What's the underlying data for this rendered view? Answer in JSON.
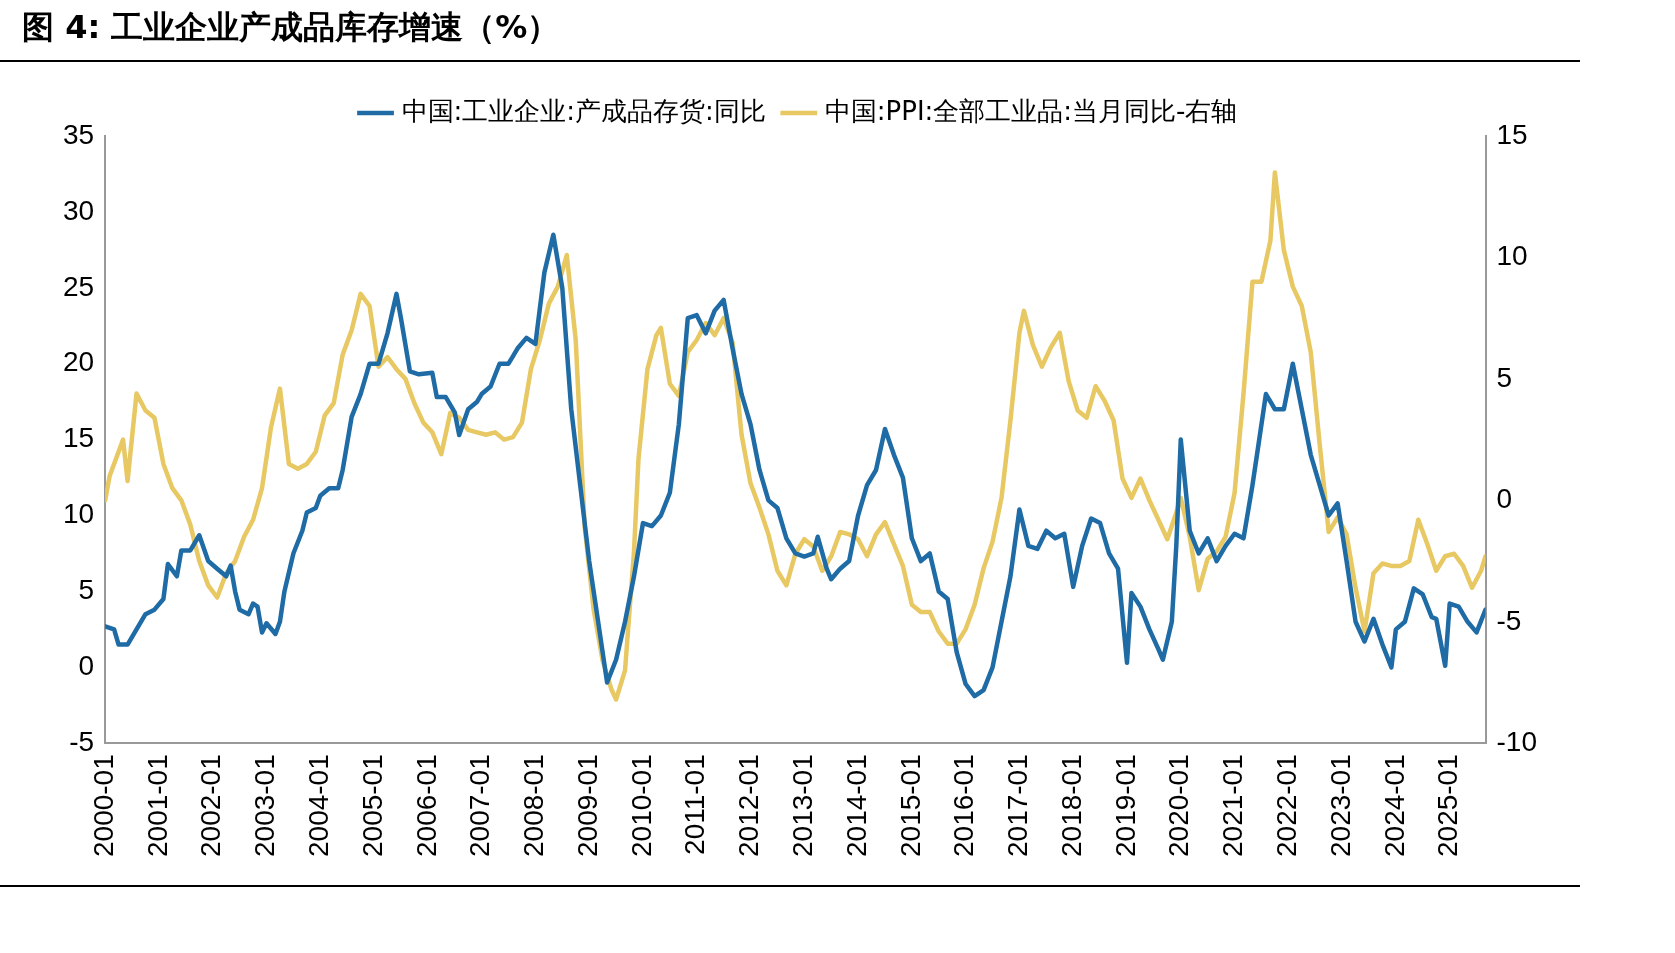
{
  "chart_data": {
    "type": "line",
    "title": "图 4: 工业企业产成品库存增速（%）",
    "xlim": [
      "2000-01",
      "2025-09"
    ],
    "xticks": [
      "2000-01",
      "2001-01",
      "2002-01",
      "2003-01",
      "2004-01",
      "2005-01",
      "2006-01",
      "2007-01",
      "2008-01",
      "2009-01",
      "2010-01",
      "2011-01",
      "2012-01",
      "2013-01",
      "2014-01",
      "2015-01",
      "2016-01",
      "2017-01",
      "2018-01",
      "2019-01",
      "2020-01",
      "2021-01",
      "2022-01",
      "2023-01",
      "2024-01",
      "2025-01"
    ],
    "ylim": [
      -5,
      35
    ],
    "yticks": [
      -5,
      0,
      5,
      10,
      15,
      20,
      25,
      30,
      35
    ],
    "y2lim": [
      -10,
      15
    ],
    "y2ticks": [
      -10,
      -5,
      0,
      5,
      10,
      15
    ],
    "grid": false,
    "legend": "top",
    "marker": "none",
    "line_style": "solid",
    "series": [
      {
        "name": "中国:工业企业:产成品存货:同比",
        "color": "#1f6ba5",
        "x": [
          "2000-01",
          "2000-03",
          "2000-04",
          "2000-06",
          "2000-08",
          "2000-10",
          "2000-12",
          "2001-02",
          "2001-03",
          "2001-05",
          "2001-06",
          "2001-08",
          "2001-10",
          "2001-12",
          "2002-02",
          "2002-04",
          "2002-05",
          "2002-06",
          "2002-07",
          "2002-09",
          "2002-10",
          "2002-11",
          "2002-12",
          "2003-01",
          "2003-03",
          "2003-04",
          "2003-05",
          "2003-07",
          "2003-09",
          "2003-10",
          "2003-12",
          "2004-01",
          "2004-03",
          "2004-05",
          "2004-06",
          "2004-08",
          "2004-10",
          "2004-12",
          "2005-02",
          "2005-04",
          "2005-06",
          "2005-07",
          "2005-09",
          "2005-11",
          "2006-02",
          "2006-03",
          "2006-05",
          "2006-07",
          "2006-08",
          "2006-10",
          "2006-12",
          "2007-01",
          "2007-03",
          "2007-05",
          "2007-07",
          "2007-09",
          "2007-11",
          "2008-01",
          "2008-03",
          "2008-05",
          "2008-07",
          "2008-09",
          "2008-11",
          "2009-01",
          "2009-03",
          "2009-05",
          "2009-07",
          "2009-09",
          "2009-11",
          "2010-01",
          "2010-03",
          "2010-05",
          "2010-07",
          "2010-09",
          "2010-11",
          "2011-01",
          "2011-03",
          "2011-05",
          "2011-07",
          "2011-09",
          "2011-11",
          "2012-01",
          "2012-03",
          "2012-05",
          "2012-07",
          "2012-09",
          "2012-11",
          "2013-01",
          "2013-03",
          "2013-04",
          "2013-06",
          "2013-07",
          "2013-09",
          "2013-11",
          "2014-01",
          "2014-03",
          "2014-05",
          "2014-07",
          "2014-09",
          "2014-11",
          "2015-01",
          "2015-03",
          "2015-05",
          "2015-07",
          "2015-09",
          "2015-11",
          "2016-01",
          "2016-03",
          "2016-05",
          "2016-07",
          "2016-09",
          "2016-11",
          "2017-01",
          "2017-03",
          "2017-05",
          "2017-07",
          "2017-09",
          "2017-11",
          "2018-01",
          "2018-03",
          "2018-05",
          "2018-07",
          "2018-09",
          "2018-11",
          "2019-01",
          "2019-02",
          "2019-04",
          "2019-06",
          "2019-08",
          "2019-09",
          "2019-11",
          "2019-12",
          "2020-01",
          "2020-03",
          "2020-05",
          "2020-07",
          "2020-09",
          "2020-11",
          "2021-01",
          "2021-03",
          "2021-05",
          "2021-06",
          "2021-08",
          "2021-10",
          "2021-12",
          "2022-02",
          "2022-04",
          "2022-06",
          "2022-08",
          "2022-10",
          "2022-12",
          "2023-02",
          "2023-04",
          "2023-06",
          "2023-08",
          "2023-10",
          "2023-12",
          "2024-01",
          "2024-03",
          "2024-05",
          "2024-07",
          "2024-09",
          "2024-10",
          "2024-12",
          "2025-01",
          "2025-03",
          "2025-05",
          "2025-07",
          "2025-09"
        ],
        "values": [
          2.7,
          2.5,
          1.5,
          1.5,
          2.5,
          3.5,
          3.8,
          4.5,
          6.8,
          6.0,
          7.7,
          7.7,
          8.7,
          7.0,
          6.5,
          6.0,
          6.7,
          5,
          3.8,
          3.5,
          4.2,
          4.0,
          2.3,
          2.9,
          2.2,
          3,
          5,
          7.5,
          9.0,
          10.2,
          10.5,
          11.3,
          11.8,
          11.8,
          13,
          16.5,
          18,
          20,
          20,
          22,
          24.6,
          23,
          19.5,
          19.3,
          19.4,
          17.8,
          17.8,
          16.8,
          15.3,
          17,
          17.5,
          18,
          18.5,
          20,
          20,
          21,
          21.7,
          21.3,
          26.0,
          28.5,
          25,
          17,
          12,
          7,
          3,
          -1,
          0.5,
          3,
          6,
          9.5,
          9.3,
          10,
          11.5,
          16,
          23,
          23.2,
          22,
          23.5,
          24.2,
          21,
          18,
          16,
          13,
          11,
          10.5,
          8.5,
          7.5,
          7.3,
          7.5,
          8.6,
          6.5,
          5.8,
          6.5,
          7,
          10,
          12,
          13,
          15.7,
          14,
          12.5,
          8.5,
          7,
          7.5,
          5,
          4.5,
          1,
          -1.1,
          -1.9,
          -1.5,
          0,
          3,
          6,
          10.4,
          8,
          7.8,
          9,
          8.5,
          8.8,
          5.3,
          8,
          9.8,
          9.5,
          7.5,
          6.5,
          0.3,
          4.9,
          4,
          2.5,
          1.2,
          0.5,
          3,
          8,
          15,
          9,
          7.5,
          8.5,
          7,
          8,
          8.8,
          8.5,
          12,
          14,
          18,
          17,
          17,
          20,
          17,
          14,
          12,
          10,
          10.8,
          7,
          3,
          1.7,
          3.2,
          1.5,
          0,
          2.5,
          3,
          5.2,
          4.8,
          3.3,
          3.2,
          0.1,
          4.2,
          4,
          3,
          2.3,
          3.8
        ]
      },
      {
        "name": "中国:PPI:全部工业品:当月同比-右轴",
        "color": "#e8c862",
        "axis": "y2",
        "x": [
          "2000-01",
          "2000-02",
          "2000-05",
          "2000-06",
          "2000-08",
          "2000-10",
          "2000-12",
          "2001-02",
          "2001-04",
          "2001-06",
          "2001-08",
          "2001-10",
          "2001-12",
          "2002-02",
          "2002-04",
          "2002-06",
          "2002-08",
          "2002-10",
          "2002-12",
          "2003-02",
          "2003-04",
          "2003-06",
          "2003-08",
          "2003-10",
          "2003-12",
          "2004-02",
          "2004-04",
          "2004-06",
          "2004-08",
          "2004-10",
          "2004-12",
          "2005-02",
          "2005-04",
          "2005-06",
          "2005-08",
          "2005-10",
          "2005-12",
          "2006-02",
          "2006-04",
          "2006-06",
          "2006-08",
          "2006-10",
          "2006-12",
          "2007-02",
          "2007-04",
          "2007-06",
          "2007-08",
          "2007-10",
          "2007-12",
          "2008-02",
          "2008-04",
          "2008-06",
          "2008-08",
          "2008-10",
          "2008-12",
          "2009-02",
          "2009-04",
          "2009-06",
          "2009-07",
          "2009-09",
          "2009-11",
          "2009-12",
          "2010-02",
          "2010-04",
          "2010-05",
          "2010-07",
          "2010-09",
          "2010-11",
          "2011-01",
          "2011-03",
          "2011-05",
          "2011-07",
          "2011-09",
          "2011-11",
          "2012-01",
          "2012-03",
          "2012-05",
          "2012-07",
          "2012-09",
          "2012-11",
          "2013-01",
          "2013-03",
          "2013-05",
          "2013-07",
          "2013-09",
          "2013-11",
          "2014-01",
          "2014-03",
          "2014-05",
          "2014-07",
          "2014-09",
          "2014-11",
          "2015-01",
          "2015-03",
          "2015-05",
          "2015-07",
          "2015-09",
          "2015-11",
          "2016-01",
          "2016-03",
          "2016-05",
          "2016-07",
          "2016-09",
          "2016-11",
          "2017-01",
          "2017-02",
          "2017-04",
          "2017-06",
          "2017-08",
          "2017-10",
          "2017-12",
          "2018-02",
          "2018-04",
          "2018-06",
          "2018-08",
          "2018-10",
          "2018-12",
          "2019-02",
          "2019-04",
          "2019-06",
          "2019-08",
          "2019-10",
          "2019-12",
          "2020-01",
          "2020-03",
          "2020-05",
          "2020-07",
          "2020-09",
          "2020-11",
          "2021-01",
          "2021-03",
          "2021-05",
          "2021-07",
          "2021-09",
          "2021-10",
          "2021-12",
          "2022-02",
          "2022-04",
          "2022-06",
          "2022-08",
          "2022-10",
          "2022-12",
          "2023-02",
          "2023-04",
          "2023-06",
          "2023-08",
          "2023-10",
          "2023-12",
          "2024-02",
          "2024-04",
          "2024-06",
          "2024-08",
          "2024-10",
          "2024-12",
          "2025-02",
          "2025-04",
          "2025-06",
          "2025-08",
          "2025-09"
        ],
        "values": [
          0,
          1,
          2.5,
          0.8,
          4.4,
          3.7,
          3.4,
          1.5,
          0.5,
          0,
          -1,
          -2.5,
          -3.5,
          -4,
          -3,
          -2.5,
          -1.5,
          -0.8,
          0.5,
          3,
          4.6,
          1.5,
          1.3,
          1.5,
          2,
          3.5,
          4,
          6,
          7,
          8.5,
          8,
          5.5,
          5.9,
          5.4,
          5,
          4,
          3.2,
          2.8,
          1.9,
          3.6,
          3.4,
          2.9,
          2.8,
          2.7,
          2.8,
          2.5,
          2.6,
          3.2,
          5.4,
          6.6,
          8.1,
          8.8,
          10.1,
          6.6,
          -1.1,
          -4.5,
          -6.6,
          -7.8,
          -8.2,
          -7,
          -2.1,
          1.7,
          5.4,
          6.8,
          7.1,
          4.8,
          4.3,
          6.1,
          6.6,
          7.3,
          6.8,
          7.5,
          6.5,
          2.7,
          0.7,
          -0.3,
          -1.4,
          -2.9,
          -3.5,
          -2.2,
          -1.6,
          -1.9,
          -2.9,
          -2.3,
          -1.3,
          -1.4,
          -1.6,
          -2.3,
          -1.4,
          -0.9,
          -1.8,
          -2.7,
          -4.3,
          -4.6,
          -4.6,
          -5.4,
          -5.9,
          -5.9,
          -5.3,
          -4.3,
          -2.8,
          -1.7,
          0.1,
          3.3,
          6.9,
          7.8,
          6.4,
          5.5,
          6.3,
          6.9,
          4.9,
          3.7,
          3.4,
          4.7,
          4.1,
          3.3,
          0.9,
          0.1,
          0.9,
          0,
          -0.8,
          -1.6,
          -0.5,
          0.1,
          -1.5,
          -3.7,
          -2.4,
          -2.1,
          -1.5,
          0.3,
          4.4,
          9,
          9,
          10.7,
          13.5,
          10.3,
          8.8,
          8,
          6.1,
          2.3,
          -1.3,
          -0.7,
          -1.4,
          -3.6,
          -5.4,
          -3,
          -2.6,
          -2.7,
          -2.7,
          -2.5,
          -0.8,
          -1.8,
          -2.9,
          -2.3,
          -2.2,
          -2.7,
          -3.6,
          -2.9,
          -2.3
        ]
      }
    ]
  }
}
